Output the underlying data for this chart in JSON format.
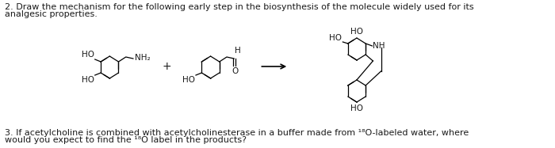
{
  "bg_color": "#ffffff",
  "text_color": "#1a1a1a",
  "line_color": "#000000",
  "title_line1": "2. Draw the mechanism for the following early step in the biosynthesis of the molecule widely used for its",
  "title_line2": "analgesic properties.",
  "footer_line1": "3. If acetylcholine is combined with acetylcholinesterase in a buffer made from ¹⁸O-labeled water, where",
  "footer_line2": "would you expect to find the ¹⁸O label in the products?",
  "fontsize_main": 8.0,
  "fontsize_chem": 7.5,
  "fontsize_label": 7.5
}
